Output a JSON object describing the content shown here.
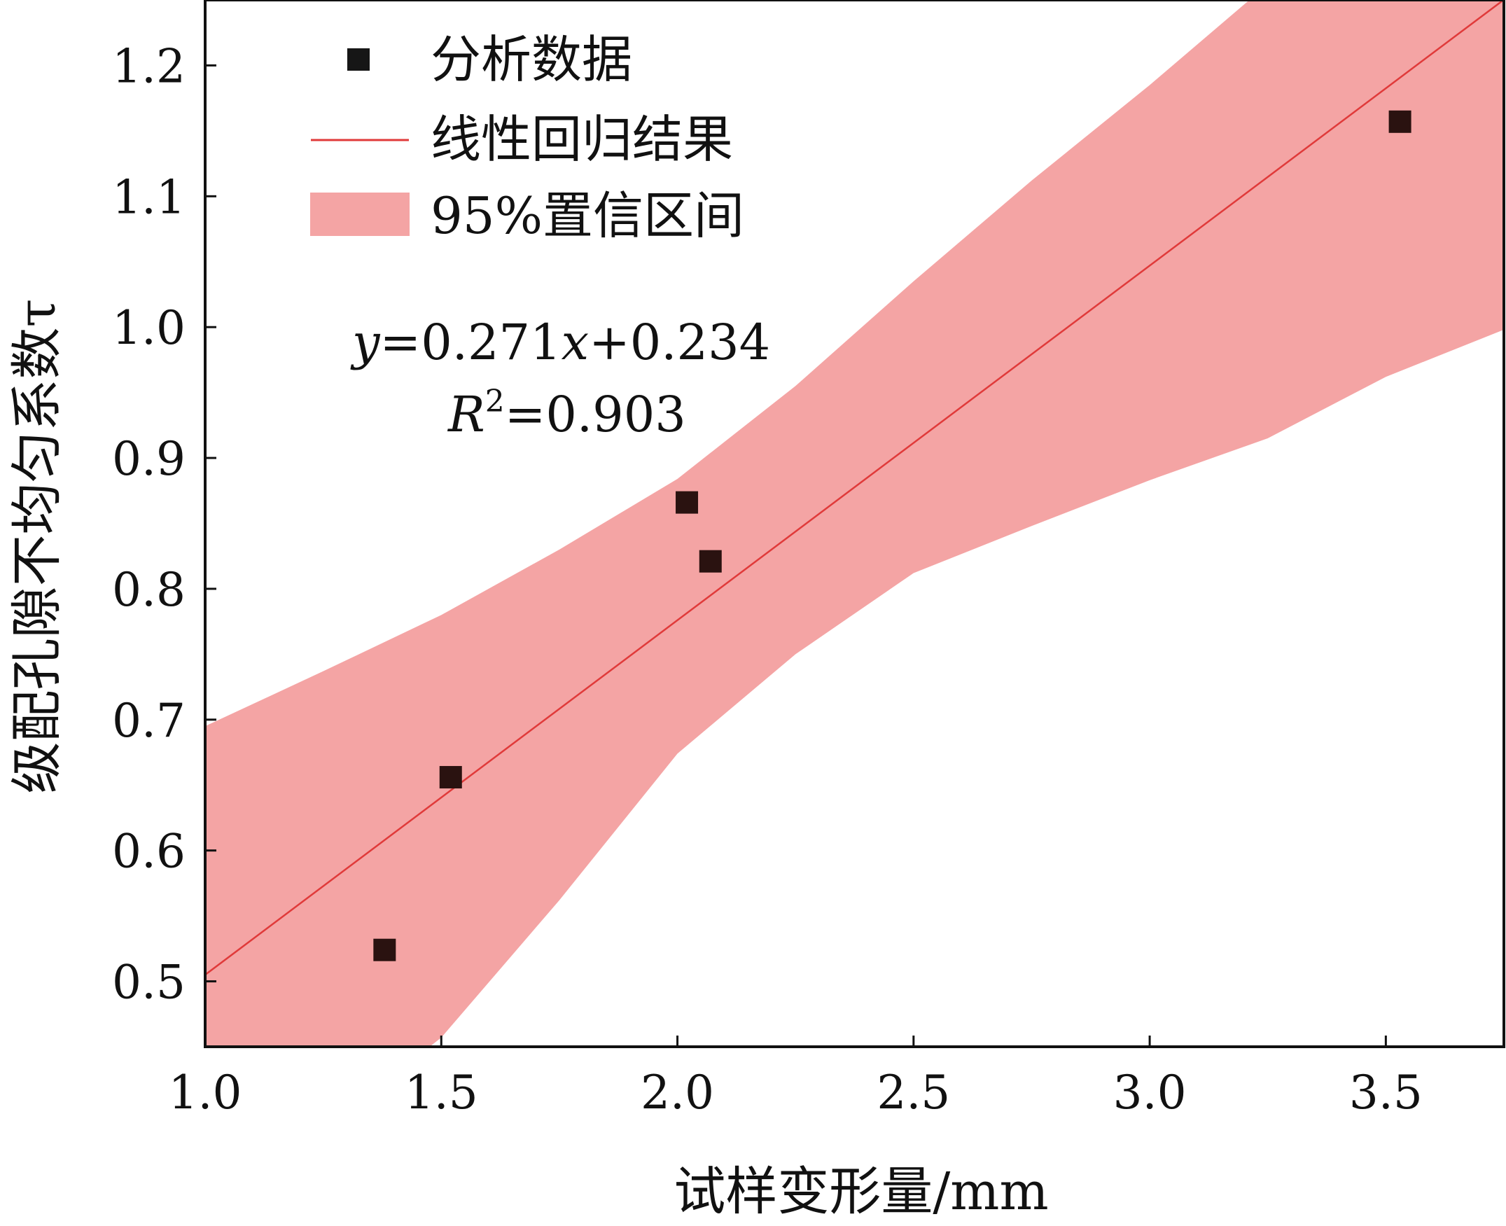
{
  "chart_data": {
    "type": "scatter",
    "xlabel": "试样变形量/mm",
    "ylabel": "级配孔隙不均匀系数τ",
    "xlim": [
      1.0,
      3.75
    ],
    "ylim": [
      0.45,
      1.25
    ],
    "xticks": [
      "1.0",
      "1.5",
      "2.0",
      "2.5",
      "3.0",
      "3.5"
    ],
    "yticks": [
      "0.5",
      "0.6",
      "0.7",
      "0.8",
      "0.9",
      "1.0",
      "1.1",
      "1.2"
    ],
    "series": [
      {
        "name": "分析数据",
        "kind": "scatter",
        "x": [
          1.38,
          1.52,
          2.02,
          2.07,
          3.53
        ],
        "y": [
          0.524,
          0.656,
          0.866,
          0.821,
          1.157
        ],
        "color": "#2a1210"
      },
      {
        "name": "线性回归结果",
        "kind": "line",
        "slope": 0.271,
        "intercept": 0.234,
        "color": "#e03a3a"
      },
      {
        "name": "95%置信区间",
        "kind": "band",
        "x": [
          1.0,
          1.25,
          1.5,
          1.75,
          2.0,
          2.25,
          2.5,
          2.75,
          3.0,
          3.25,
          3.5,
          3.75
        ],
        "upper": [
          0.695,
          0.737,
          0.78,
          0.83,
          0.884,
          0.955,
          1.035,
          1.112,
          1.185,
          1.262,
          1.345,
          1.42
        ],
        "lower": [
          0.315,
          0.386,
          0.457,
          0.562,
          0.674,
          0.75,
          0.812,
          0.848,
          0.883,
          0.915,
          0.962,
          0.998
        ],
        "color": "#f4a4a4"
      }
    ],
    "legend_position": "top-left",
    "annotation": {
      "equation_prefix": "y",
      "equation_mid": "=0.271",
      "equation_var": "x",
      "equation_suffix": "+0.234",
      "r2_base": "R",
      "r2_sup": "2",
      "r2_value": "=0.903"
    }
  }
}
